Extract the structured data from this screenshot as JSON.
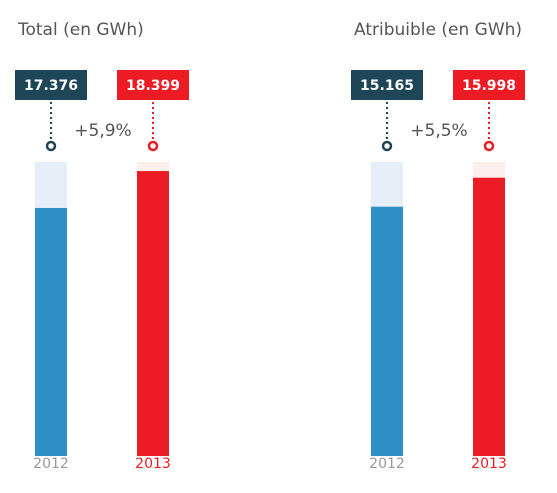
{
  "chart_data": [
    {
      "type": "bar",
      "title": "Total (en GWh)",
      "categories": [
        "2012",
        "2013"
      ],
      "values": [
        17376,
        18399
      ],
      "value_labels": [
        "17.376",
        "18.399"
      ],
      "colors": [
        "#2e8fc4",
        "#ed1c24"
      ],
      "ylim": [
        10500,
        18650
      ],
      "change": "+5,9%"
    },
    {
      "type": "bar",
      "title": "Atribuible (en GWh)",
      "categories": [
        "2012",
        "2013"
      ],
      "values": [
        15165,
        15998
      ],
      "value_labels": [
        "15.165",
        "15.998"
      ],
      "colors": [
        "#2e8fc4",
        "#ed1c24"
      ],
      "ylim": [
        8000,
        16450
      ],
      "change": "+5,5%"
    }
  ]
}
